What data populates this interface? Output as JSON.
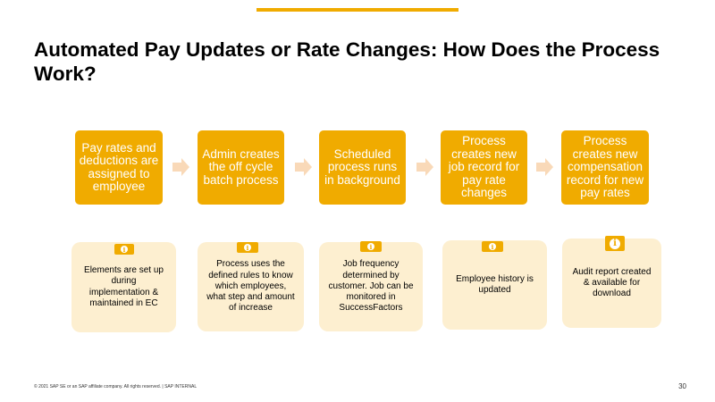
{
  "title": "Automated Pay Updates or Rate Changes: How Does the Process Work?",
  "steps": [
    "Pay rates and deductions are assigned to employee",
    "Admin creates the off cycle batch process",
    "Scheduled process runs in background",
    "Process creates new job record for pay rate changes",
    "Process creates new compensation record for new pay rates"
  ],
  "notes": [
    "Elements are set up during implementation & maintained in EC",
    "Process uses the defined rules to know which employees, what step and amount of increase",
    "Job frequency determined by customer. Job can be monitored in SuccessFactors",
    "Employee history is updated",
    "Audit report created & available for download"
  ],
  "info_glyph": "i",
  "icons": {
    "arrow": "arrow-right-icon",
    "info": "info-icon"
  },
  "colors": {
    "accent": "#f0ab00",
    "note_bg": "#fdefd0",
    "arrow": "#f9d9b8"
  },
  "footer": "© 2021 SAP SE or an SAP affiliate company. All rights reserved.  |  SAP INTERNAL",
  "page_number": "30"
}
